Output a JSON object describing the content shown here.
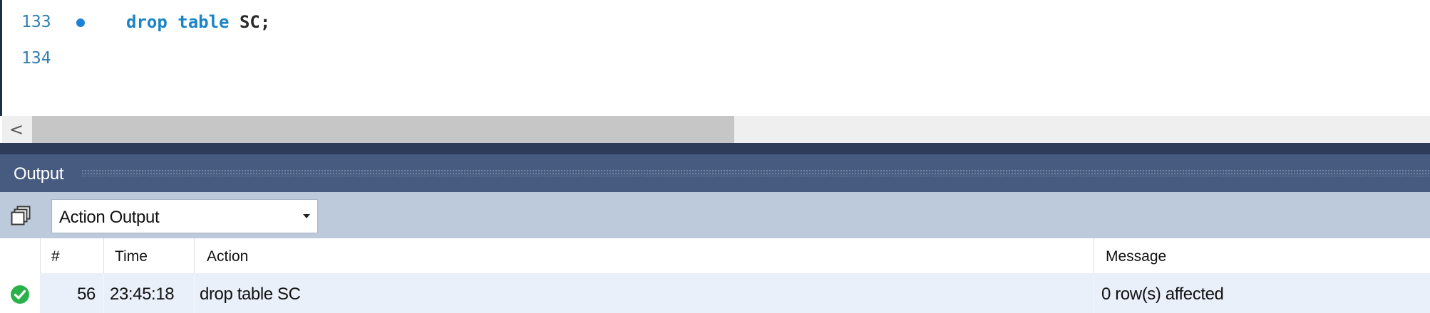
{
  "editor": {
    "lines": [
      {
        "number": "133",
        "keyword": "drop table",
        "identifier": "SC",
        "terminator": ";"
      },
      {
        "number": "134"
      }
    ],
    "scroll_left_glyph": "<"
  },
  "output": {
    "title": "Output",
    "toolbar": {
      "selected_view": "Action Output"
    },
    "columns": [
      "#",
      "Time",
      "Action",
      "Message"
    ],
    "rows": [
      {
        "status": "success",
        "number": "56",
        "time": "23:45:18",
        "action": "drop table SC",
        "message": "0 row(s) affected"
      }
    ]
  },
  "colors": {
    "keyword": "#1a84c6",
    "line_number": "#2f7fb0",
    "panel_header": "#475b80",
    "toolbar": "#bccadb",
    "row_highlight": "#e9f0fa",
    "success": "#2bb14a"
  },
  "icons": {
    "statement_marker": "statement-marker-dot",
    "copy": "copy-icon",
    "dropdown": "chevron-down-icon",
    "success": "check-circle-icon"
  }
}
